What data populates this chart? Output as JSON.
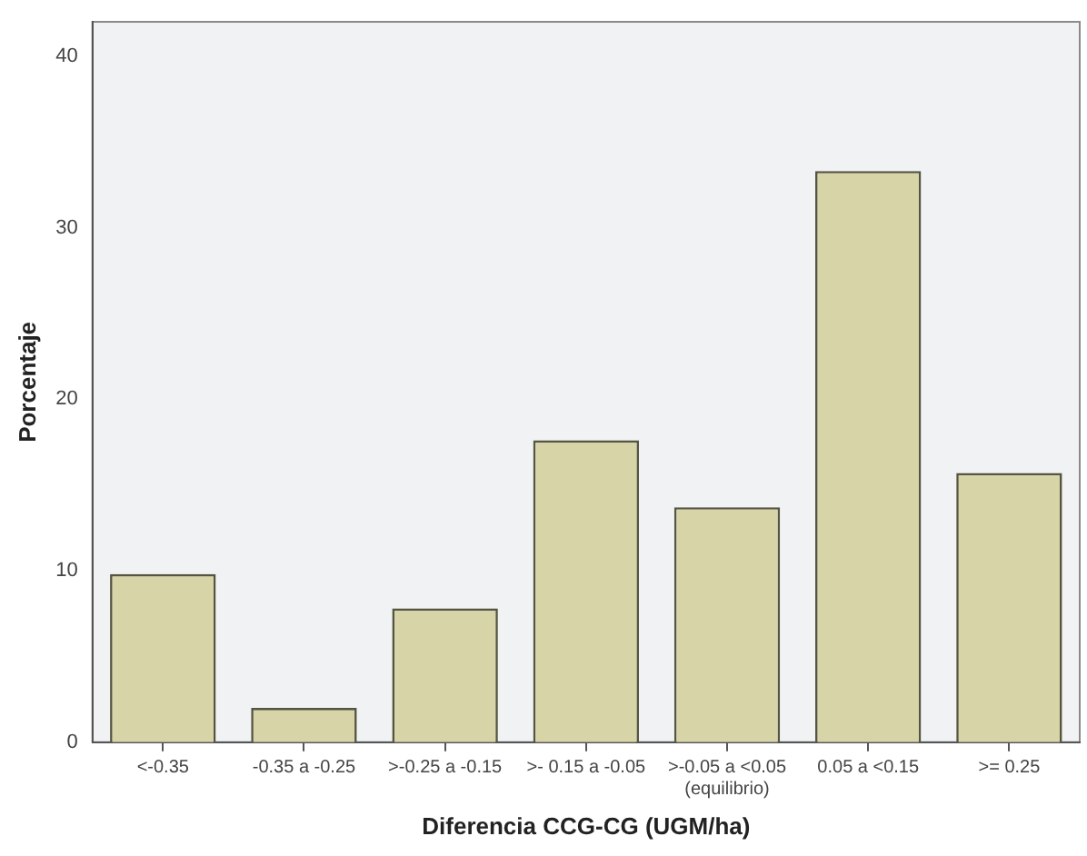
{
  "chart_data": {
    "type": "bar",
    "xlabel": "Diferencia CCG-CG (UGM/ha)",
    "ylabel": "Porcentaje",
    "categories": [
      "<-0.35",
      "-0.35 a -0.25",
      ">-0.25 a -0.15",
      ">- 0.15 a -0.05",
      ">-0.05 a <0.05 (equilibrio)",
      "0.05 a <0.15",
      ">= 0.25"
    ],
    "values": [
      9.8,
      2.0,
      7.8,
      17.6,
      13.7,
      33.3,
      15.7
    ],
    "color": "#d7d4a8",
    "ylim": [
      0,
      42
    ],
    "yticks": [
      0,
      10,
      20,
      30,
      40
    ],
    "grid": false,
    "legend": false
  }
}
